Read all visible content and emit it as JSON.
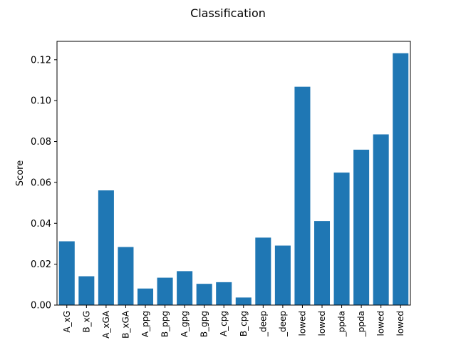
{
  "chart_data": {
    "type": "bar",
    "title": "Classification",
    "xlabel": "",
    "ylabel": "Score",
    "categories": [
      "A_xG",
      "B_xG",
      "A_xGA",
      "B_xGA",
      "A_ppg",
      "B_ppg",
      "A_gpg",
      "B_gpg",
      "A_cpg",
      "B_cpg",
      "_deep",
      "_deep",
      "lowed",
      "lowed",
      "_ppda",
      "_ppda",
      "lowed",
      "lowed"
    ],
    "values": [
      0.0312,
      0.0141,
      0.0561,
      0.0284,
      0.0081,
      0.0134,
      0.0166,
      0.0104,
      0.0112,
      0.0037,
      0.033,
      0.0291,
      0.1068,
      0.0411,
      0.0648,
      0.076,
      0.0835,
      0.1232
    ],
    "ylim": [
      0,
      0.129
    ],
    "yticks": [
      0.0,
      0.02,
      0.04,
      0.06,
      0.08,
      0.1,
      0.12
    ],
    "ytick_labels": [
      "0.00",
      "0.02",
      "0.04",
      "0.06",
      "0.08",
      "0.10",
      "0.12"
    ],
    "grid": false,
    "bar_color": "#1f77b4"
  }
}
